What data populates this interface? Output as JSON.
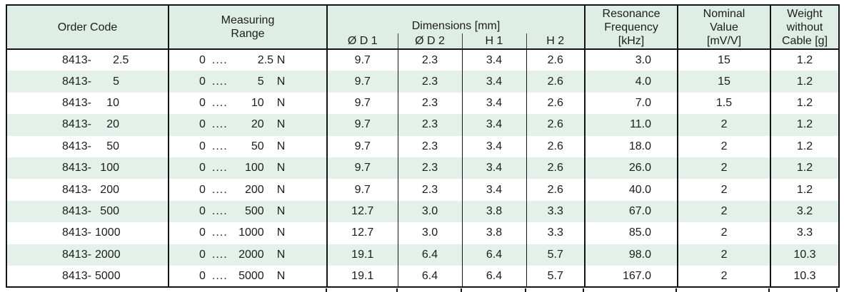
{
  "colors": {
    "header_bg": "#deeee7",
    "row_alt_bg": "#e4f1ea",
    "border": "#141414",
    "text": "#1c1c1c"
  },
  "table": {
    "headers": {
      "order_code": "Order Code",
      "measuring_range": [
        "Measuring",
        "Range"
      ],
      "dimensions_group": "Dimensions [mm]",
      "dim_subcols": [
        "Ø D 1",
        "Ø D 2",
        "H 1",
        "H 2"
      ],
      "resonance": [
        "Resonance",
        "Frequency",
        "[kHz]"
      ],
      "nominal": [
        "Nominal",
        "Value",
        "[mV/V]"
      ],
      "weight": [
        "Weight",
        "without",
        "Cable [g]"
      ]
    },
    "rows": [
      {
        "order_prefix": "8413-",
        "order_num": "2.5",
        "range_start": "0",
        "range_dots": "....",
        "range_end": "2.5",
        "range_unit": "N",
        "d1": "9.7",
        "d2": "2.3",
        "h1": "3.4",
        "h2": "2.6",
        "freq": "3.0",
        "nominal": "15",
        "weight": "1.2"
      },
      {
        "order_prefix": "8413-",
        "order_num": "5",
        "range_start": "0",
        "range_dots": "....",
        "range_end": "5",
        "range_unit": "N",
        "d1": "9.7",
        "d2": "2.3",
        "h1": "3.4",
        "h2": "2.6",
        "freq": "4.0",
        "nominal": "15",
        "weight": "1.2"
      },
      {
        "order_prefix": "8413-",
        "order_num": "10",
        "range_start": "0",
        "range_dots": "....",
        "range_end": "10",
        "range_unit": "N",
        "d1": "9.7",
        "d2": "2.3",
        "h1": "3.4",
        "h2": "2.6",
        "freq": "7.0",
        "nominal": "1.5",
        "weight": "1.2"
      },
      {
        "order_prefix": "8413-",
        "order_num": "20",
        "range_start": "0",
        "range_dots": "....",
        "range_end": "20",
        "range_unit": "N",
        "d1": "9.7",
        "d2": "2.3",
        "h1": "3.4",
        "h2": "2.6",
        "freq": "11.0",
        "nominal": "2",
        "weight": "1.2"
      },
      {
        "order_prefix": "8413-",
        "order_num": "50",
        "range_start": "0",
        "range_dots": "....",
        "range_end": "50",
        "range_unit": "N",
        "d1": "9.7",
        "d2": "2.3",
        "h1": "3.4",
        "h2": "2.6",
        "freq": "18.0",
        "nominal": "2",
        "weight": "1.2"
      },
      {
        "order_prefix": "8413-",
        "order_num": "100",
        "range_start": "0",
        "range_dots": "....",
        "range_end": "100",
        "range_unit": "N",
        "d1": "9.7",
        "d2": "2.3",
        "h1": "3.4",
        "h2": "2.6",
        "freq": "26.0",
        "nominal": "2",
        "weight": "1.2"
      },
      {
        "order_prefix": "8413-",
        "order_num": "200",
        "range_start": "0",
        "range_dots": "....",
        "range_end": "200",
        "range_unit": "N",
        "d1": "9.7",
        "d2": "2.3",
        "h1": "3.4",
        "h2": "2.6",
        "freq": "40.0",
        "nominal": "2",
        "weight": "1.2"
      },
      {
        "order_prefix": "8413-",
        "order_num": "500",
        "range_start": "0",
        "range_dots": "....",
        "range_end": "500",
        "range_unit": "N",
        "d1": "12.7",
        "d2": "3.0",
        "h1": "3.8",
        "h2": "3.3",
        "freq": "67.0",
        "nominal": "2",
        "weight": "3.2"
      },
      {
        "order_prefix": "8413-",
        "order_num": "1000",
        "range_start": "0",
        "range_dots": "....",
        "range_end": "1000",
        "range_unit": "N",
        "d1": "12.7",
        "d2": "3.0",
        "h1": "3.8",
        "h2": "3.3",
        "freq": "85.0",
        "nominal": "2",
        "weight": "3.3"
      },
      {
        "order_prefix": "8413-",
        "order_num": "2000",
        "range_start": "0",
        "range_dots": "....",
        "range_end": "2000",
        "range_unit": "N",
        "d1": "19.1",
        "d2": "6.4",
        "h1": "6.4",
        "h2": "5.7",
        "freq": "98.0",
        "nominal": "2",
        "weight": "10.3"
      },
      {
        "order_prefix": "8413-",
        "order_num": "5000",
        "range_start": "0",
        "range_dots": "....",
        "range_end": "5000",
        "range_unit": "N",
        "d1": "19.1",
        "d2": "6.4",
        "h1": "6.4",
        "h2": "5.7",
        "freq": "167.0",
        "nominal": "2",
        "weight": "10.3"
      }
    ]
  }
}
